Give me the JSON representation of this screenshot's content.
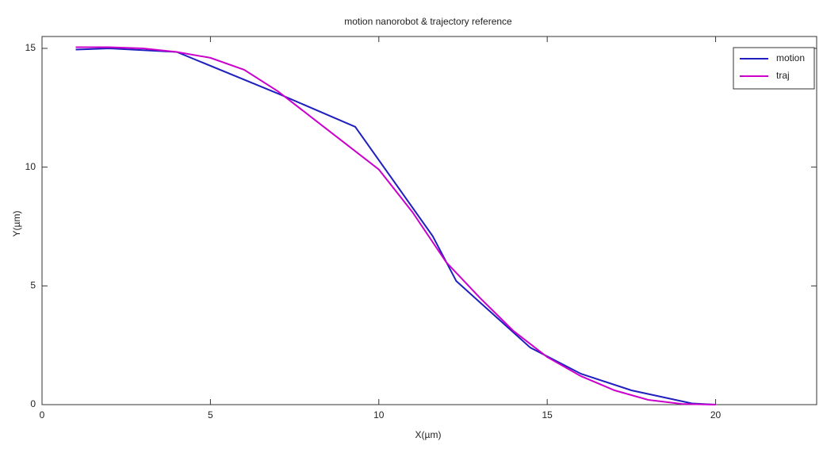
{
  "chart_data": {
    "type": "line",
    "title": "motion nanorobot & trajectory reference",
    "x_label": "X(µm)",
    "y_label": "Y(µm)",
    "xlim": [
      0,
      23
    ],
    "ylim": [
      0,
      15.5
    ],
    "xticks": [
      0,
      5,
      10,
      15,
      20
    ],
    "yticks": [
      0,
      5,
      10,
      15
    ],
    "legend": "upper right",
    "series": [
      {
        "name": "motion",
        "color": "#1f1fbf",
        "x": [
          1,
          2,
          4,
          7,
          9.3,
          11.6,
          12.3,
          14.5,
          16,
          17.5,
          19.3,
          20
        ],
        "values": [
          14.95,
          15,
          14.85,
          13.1,
          11.7,
          7.1,
          5.2,
          2.4,
          1.3,
          0.6,
          0.05,
          0
        ]
      },
      {
        "name": "traj",
        "color": "#cc00cc",
        "x": [
          1,
          2,
          3,
          4,
          5,
          6,
          7,
          8,
          9,
          10,
          11,
          12,
          13,
          14,
          15,
          16,
          17,
          18,
          19,
          20
        ],
        "values": [
          15.05,
          15.05,
          15,
          14.85,
          14.6,
          14.1,
          13.2,
          12.1,
          11,
          9.9,
          8.1,
          6,
          4.5,
          3.1,
          2,
          1.2,
          0.6,
          0.2,
          0.03,
          0
        ]
      }
    ]
  }
}
